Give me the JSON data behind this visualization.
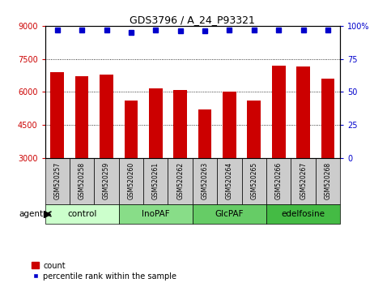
{
  "title": "GDS3796 / A_24_P93321",
  "samples": [
    "GSM520257",
    "GSM520258",
    "GSM520259",
    "GSM520260",
    "GSM520261",
    "GSM520262",
    "GSM520263",
    "GSM520264",
    "GSM520265",
    "GSM520266",
    "GSM520267",
    "GSM520268"
  ],
  "counts": [
    6900,
    6700,
    6800,
    5600,
    6150,
    6100,
    5200,
    6000,
    5600,
    7200,
    7150,
    6600
  ],
  "percentile_ranks": [
    97,
    97,
    97,
    95,
    97,
    96,
    96,
    97,
    97,
    97,
    97,
    97
  ],
  "ylim_left": [
    3000,
    9000
  ],
  "ylim_right": [
    0,
    100
  ],
  "yticks_left": [
    3000,
    4500,
    6000,
    7500,
    9000
  ],
  "yticks_right": [
    0,
    25,
    50,
    75,
    100
  ],
  "bar_color": "#cc0000",
  "dot_color": "#0000cc",
  "groups": [
    {
      "label": "control",
      "start": 0,
      "end": 3,
      "color": "#ccffcc"
    },
    {
      "label": "InoPAF",
      "start": 3,
      "end": 6,
      "color": "#88dd88"
    },
    {
      "label": "GlcPAF",
      "start": 6,
      "end": 9,
      "color": "#66cc66"
    },
    {
      "label": "edelfosine",
      "start": 9,
      "end": 12,
      "color": "#44bb44"
    }
  ],
  "agent_label": "agent",
  "legend_count_label": "count",
  "legend_percentile_label": "percentile rank within the sample",
  "bar_width": 0.55,
  "grid_color": "black",
  "grid_style": "dotted",
  "bg_color": "white",
  "tick_label_color_left": "#cc0000",
  "tick_label_color_right": "#0000cc",
  "sample_box_color": "#cccccc",
  "title_fontsize": 9
}
